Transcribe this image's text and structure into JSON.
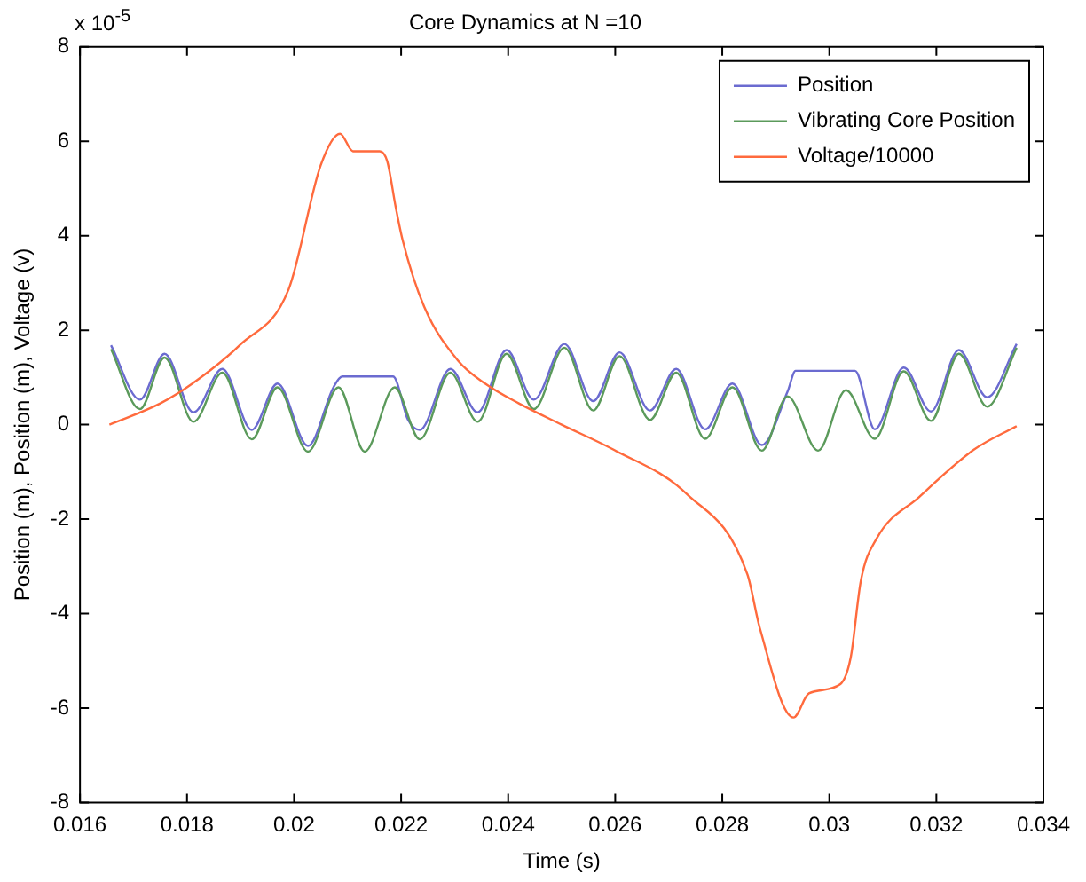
{
  "chart_data": {
    "type": "line",
    "title": "Core Dynamics at N =10",
    "xlabel": "Time (s)",
    "ylabel": "Position (m), Position (m), Voltage (v)",
    "annotations": [
      "x 10$^{-5}$"
    ],
    "xlim": [
      0.016,
      0.034
    ],
    "xticks": [
      0.016,
      0.018,
      0.02,
      0.022,
      0.024,
      0.026,
      0.028,
      0.03,
      0.032,
      0.034
    ],
    "ylim": [
      -8,
      8
    ],
    "yticks": [
      -8,
      -6,
      -4,
      -2,
      0,
      2,
      4,
      6,
      8
    ],
    "grid": false,
    "legend": "top right",
    "marker": "none",
    "line_style": "solid",
    "series": [
      {
        "name": "Position",
        "color": "#6b6bd0",
        "x": [
          0.01658,
          0.01712,
          0.01758,
          0.01812,
          0.01866,
          0.01921,
          0.01969,
          0.02026,
          0.02074,
          0.0209,
          0.02185,
          0.02213,
          0.02235,
          0.02292,
          0.02343,
          0.02397,
          0.02448,
          0.02505,
          0.02559,
          0.02608,
          0.02665,
          0.02714,
          0.02768,
          0.02819,
          0.02874,
          0.02922,
          0.02937,
          0.03048,
          0.03085,
          0.03139,
          0.0319,
          0.03242,
          0.03295,
          0.0335
        ],
        "values": [
          1.68,
          0.53,
          1.5,
          0.26,
          1.18,
          -0.11,
          0.87,
          -0.45,
          0.8,
          1.02,
          1.02,
          0.1,
          -0.11,
          1.18,
          0.26,
          1.58,
          0.53,
          1.71,
          0.5,
          1.53,
          0.3,
          1.18,
          -0.1,
          0.87,
          -0.43,
          0.7,
          1.14,
          1.14,
          -0.1,
          1.21,
          0.28,
          1.58,
          0.58,
          1.71
        ]
      },
      {
        "name": "Vibrating Core Position",
        "color": "#5b9a5b",
        "x": [
          0.01658,
          0.01712,
          0.01758,
          0.01812,
          0.01866,
          0.01921,
          0.01969,
          0.02026,
          0.02083,
          0.02132,
          0.02188,
          0.02235,
          0.02292,
          0.02343,
          0.02397,
          0.02448,
          0.02505,
          0.02559,
          0.02608,
          0.02665,
          0.02714,
          0.02768,
          0.02819,
          0.02874,
          0.02922,
          0.02979,
          0.03031,
          0.03085,
          0.03139,
          0.0319,
          0.03242,
          0.03295,
          0.0335
        ],
        "values": [
          1.6,
          0.33,
          1.42,
          0.06,
          1.1,
          -0.31,
          0.79,
          -0.57,
          0.79,
          -0.57,
          0.79,
          -0.31,
          1.1,
          0.06,
          1.5,
          0.33,
          1.63,
          0.3,
          1.45,
          0.1,
          1.1,
          -0.3,
          0.79,
          -0.55,
          0.6,
          -0.55,
          0.73,
          -0.3,
          1.13,
          0.08,
          1.5,
          0.38,
          1.63
        ]
      },
      {
        "name": "Voltage/10000",
        "color": "#ff6a3d",
        "x": [
          0.01655,
          0.0175,
          0.0181,
          0.019,
          0.0199,
          0.0205,
          0.02086,
          0.0211,
          0.0216,
          0.02174,
          0.0219,
          0.02203,
          0.02243,
          0.02306,
          0.02357,
          0.0242,
          0.025,
          0.02597,
          0.02734,
          0.02847,
          0.0287,
          0.02933,
          0.02962,
          0.0302,
          0.0304,
          0.03059,
          0.03088,
          0.03168,
          0.0327,
          0.0335
        ],
        "values": [
          0,
          0.45,
          0.87,
          1.7,
          2.87,
          5.5,
          6.16,
          5.79,
          5.79,
          5.58,
          4.6,
          3.9,
          2.5,
          1.36,
          0.87,
          0.45,
          0,
          -0.53,
          -1.47,
          -3.17,
          -4.3,
          -6.2,
          -5.69,
          -5.5,
          -4.93,
          -3.3,
          -2.42,
          -1.53,
          -0.53,
          -0.03
        ]
      }
    ]
  }
}
